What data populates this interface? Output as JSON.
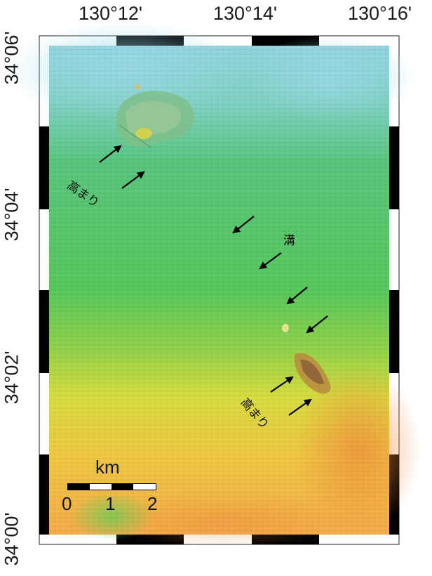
{
  "map": {
    "longitude_labels": [
      "130°12'",
      "130°14'",
      "130°16'"
    ],
    "latitude_labels": [
      "34°06'",
      "34°04'",
      "34°02'",
      "34°00'"
    ],
    "colors": {
      "deep": "#8fd3dc",
      "mid": "#4cc46a",
      "shallow_yellow": "#e6dc3a",
      "shallow_orange": "#f0a040",
      "relief_brown": "#8a5a3a"
    },
    "annotations": {
      "rise_label_1": "高まり",
      "trench_label": "溝",
      "rise_label_2": "高まり"
    },
    "scale_bar": {
      "unit": "km",
      "ticks": [
        "0",
        "1",
        "2"
      ]
    }
  }
}
